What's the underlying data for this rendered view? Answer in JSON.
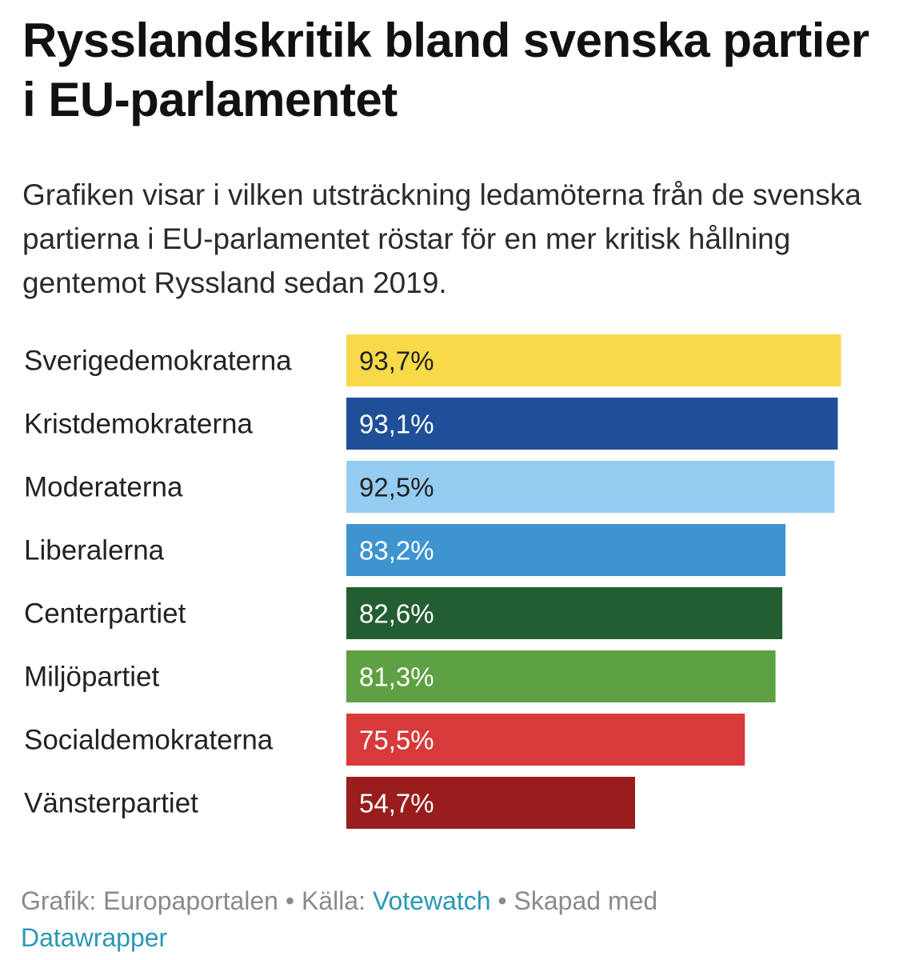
{
  "title": "Rysslandskritik bland svenska partier i EU-parlamentet",
  "subtitle": "Grafiken visar i vilken utsträckning ledamöterna från de svenska partierna i EU-parlamentet röstar för en mer kritisk hållning gentemot Ryssland sedan 2019.",
  "footer": {
    "graphic_label": "Grafik: Europaportalen",
    "separator": "•",
    "source_label": "Källa:",
    "source_link": "Votewatch",
    "created_label": "Skapad med",
    "created_link": "Datawrapper"
  },
  "chart_data": {
    "type": "bar",
    "orientation": "horizontal",
    "categories": [
      "Sverigedemokraterna",
      "Kristdemokraterna",
      "Moderaterna",
      "Liberalerna",
      "Centerpartiet",
      "Miljöpartiet",
      "Socialdemokraterna",
      "Vänsterpartiet"
    ],
    "values": [
      93.7,
      93.1,
      92.5,
      83.2,
      82.6,
      81.3,
      75.5,
      54.7
    ],
    "value_labels": [
      "93,7%",
      "93,1%",
      "92,5%",
      "83,2%",
      "82,6%",
      "81,3%",
      "75,5%",
      "54,7%"
    ],
    "colors": [
      "#f7d949",
      "#1f4f99",
      "#95cdf2",
      "#3d94cf",
      "#235e33",
      "#5ea044",
      "#d83a3b",
      "#991d1d"
    ],
    "label_colors": [
      "#222222",
      "#ffffff",
      "#222222",
      "#ffffff",
      "#ffffff",
      "#ffffff",
      "#ffffff",
      "#ffffff"
    ],
    "xlim": [
      0,
      100
    ],
    "grid": false,
    "legend": "none"
  }
}
